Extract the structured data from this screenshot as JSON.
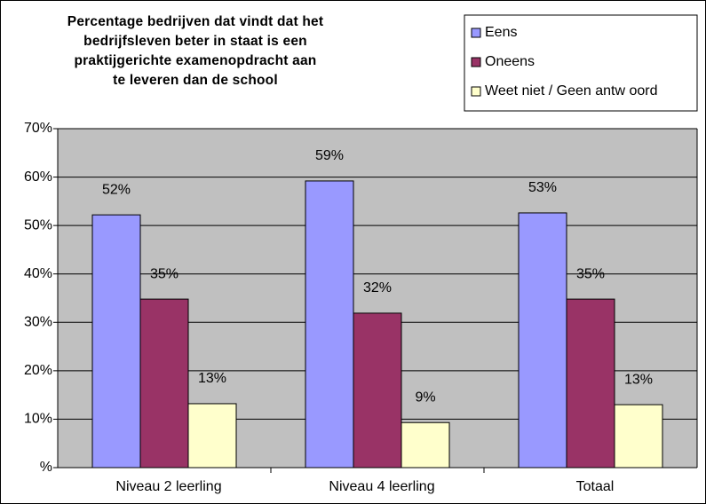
{
  "chart_data": {
    "type": "bar",
    "title": "Percentage bedrijven dat vindt dat het\nbedrijfsleven beter in staat is een\npraktijgerichte examenopdracht aan\nte leveren dan de school",
    "categories": [
      "Niveau 2 leerling",
      "Niveau 4 leerling",
      "Totaal"
    ],
    "series": [
      {
        "name": "Eens",
        "color": "#9999ff",
        "values": [
          52.2,
          59.2,
          52.6
        ],
        "value_labels": [
          "52%",
          "59%",
          "53%"
        ]
      },
      {
        "name": "Oneens",
        "color": "#993366",
        "values": [
          34.8,
          31.9,
          34.8
        ],
        "value_labels": [
          "35%",
          "32%",
          "35%"
        ]
      },
      {
        "name": "Weet niet / Geen antw oord",
        "color": "#ffffcc",
        "values": [
          13.2,
          9.3,
          13.0
        ],
        "value_labels": [
          "13%",
          "9%",
          "13%"
        ]
      }
    ],
    "ylim": [
      0,
      70
    ],
    "yticks": [
      {
        "value": 0,
        "label": "%"
      },
      {
        "value": 10,
        "label": "10%"
      },
      {
        "value": 20,
        "label": "20%"
      },
      {
        "value": 30,
        "label": "30%"
      },
      {
        "value": 40,
        "label": "40%"
      },
      {
        "value": 50,
        "label": "50%"
      },
      {
        "value": 60,
        "label": "60%"
      },
      {
        "value": 70,
        "label": "70%"
      }
    ],
    "grid": true,
    "legend": "top-right",
    "plot_background": "#c0c0c0"
  }
}
